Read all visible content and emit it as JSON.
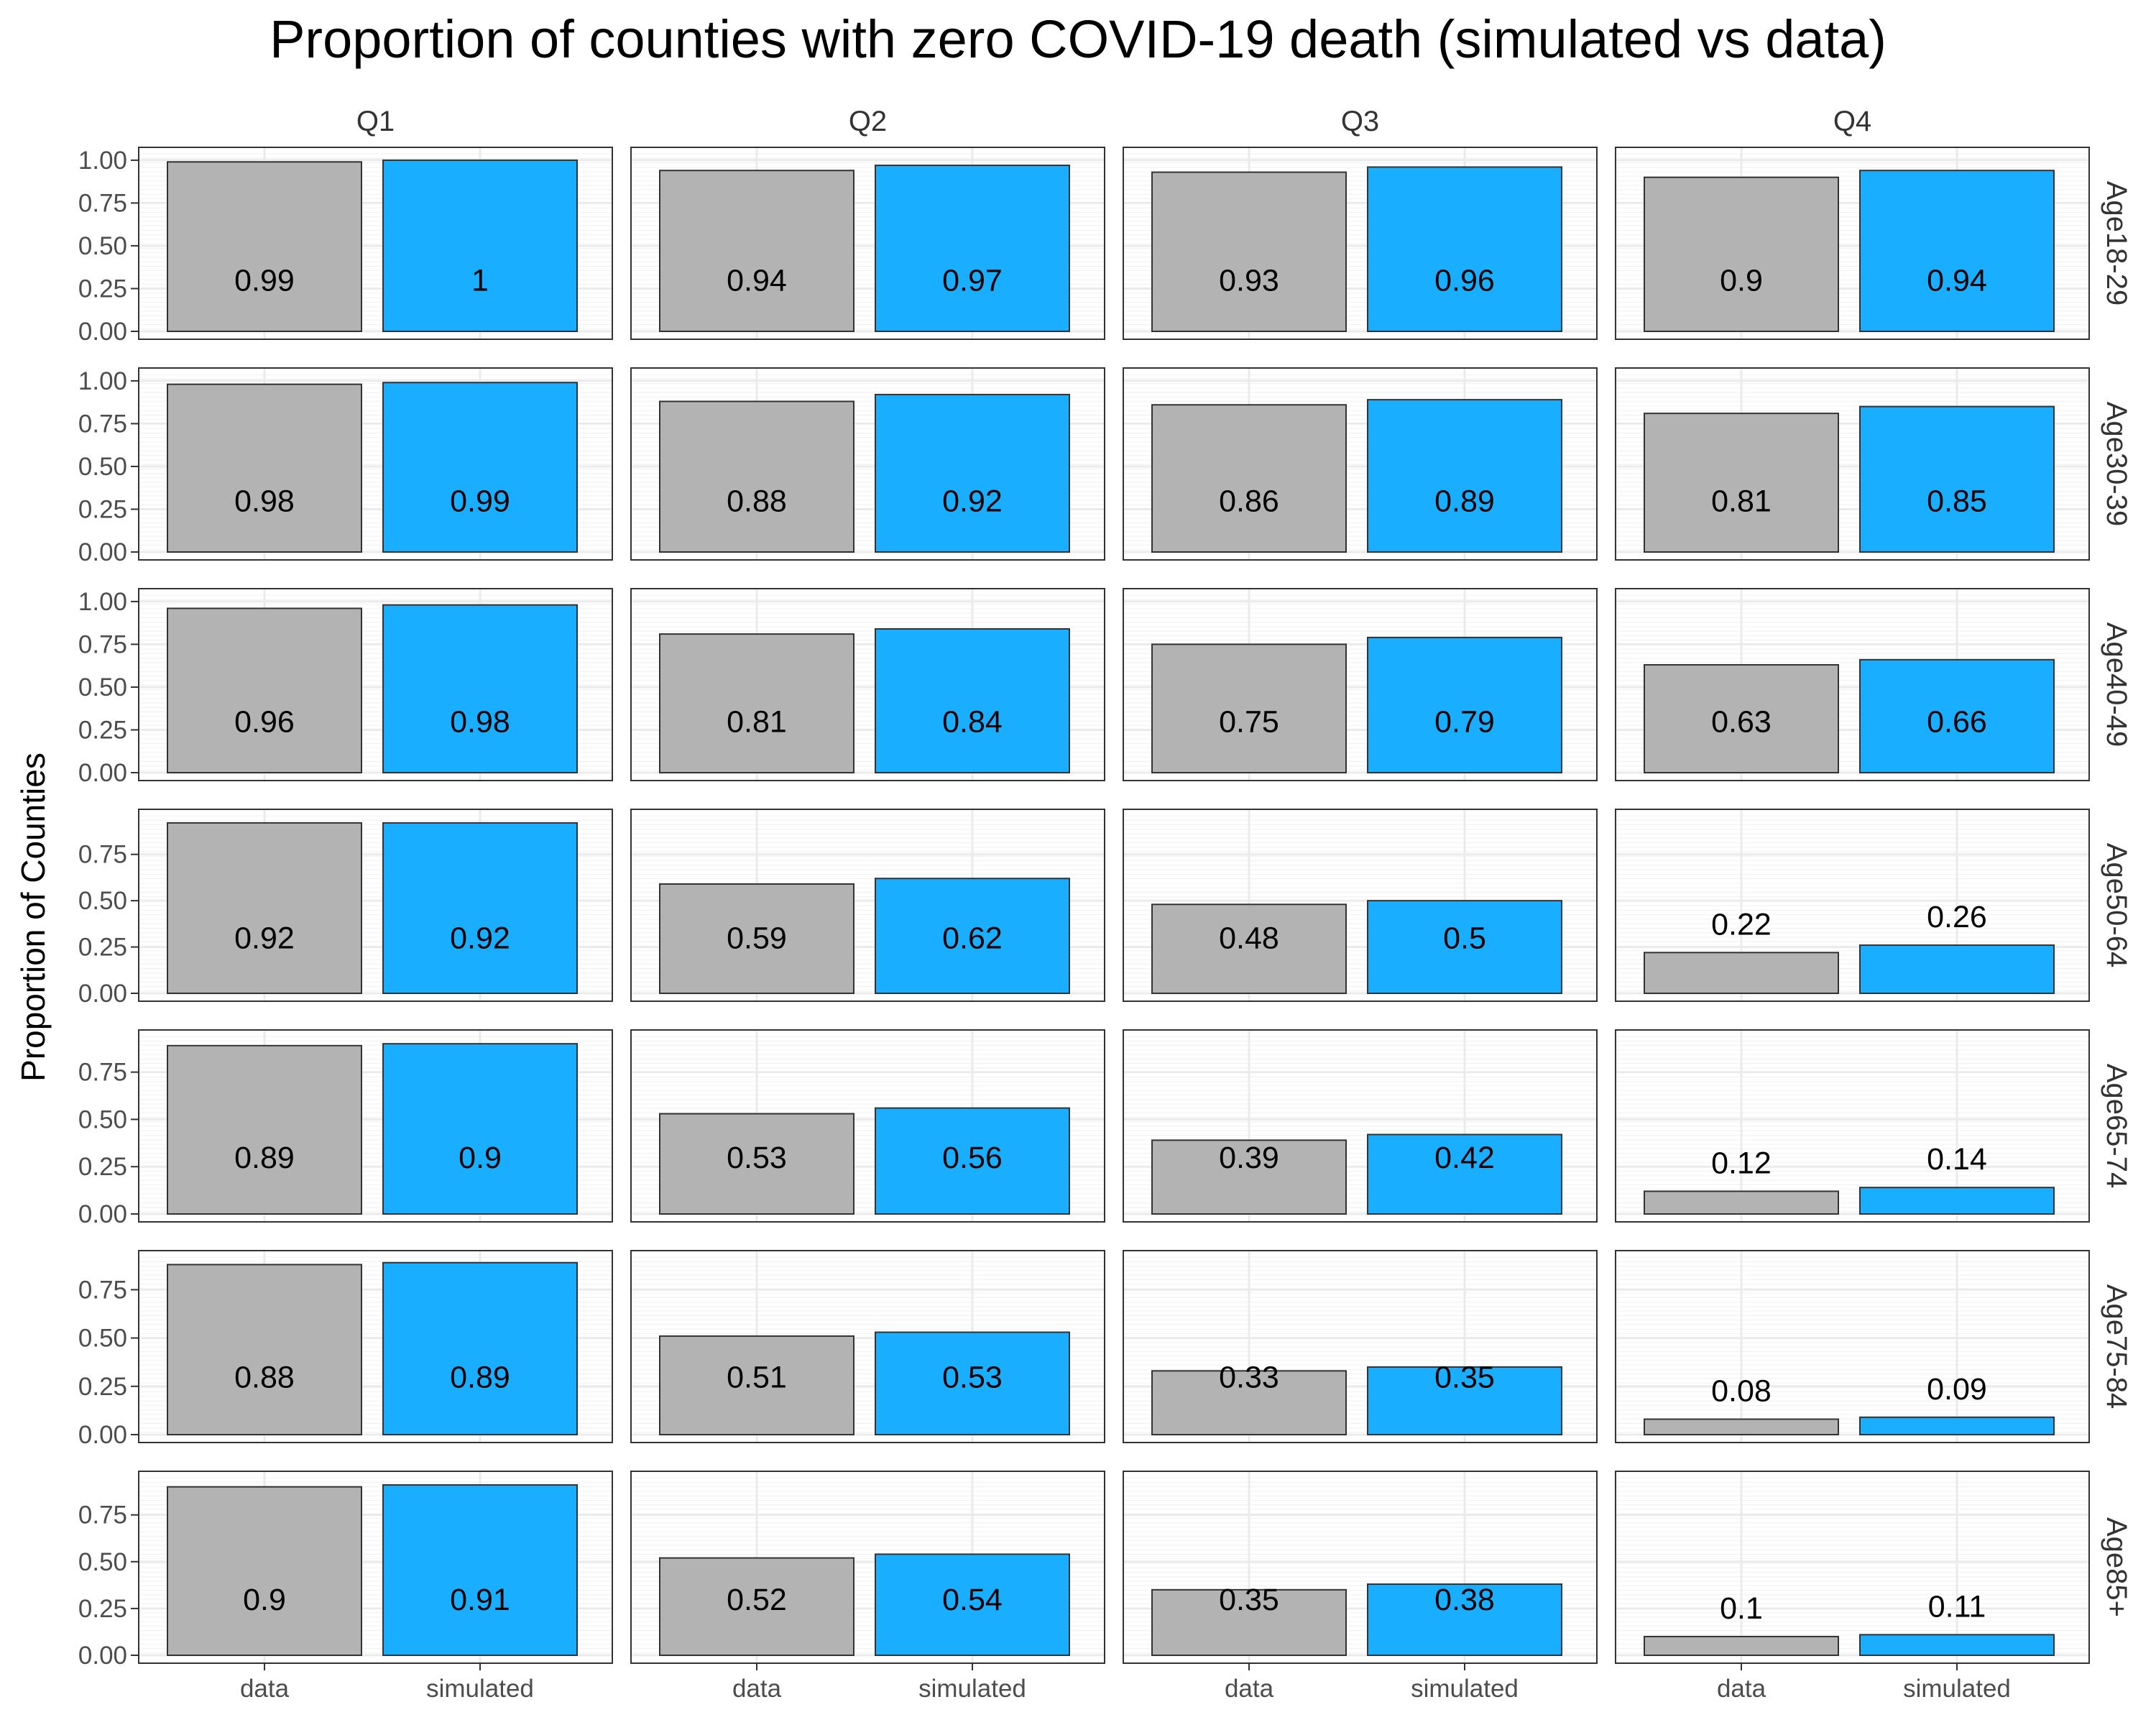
{
  "chart_data": {
    "type": "bar",
    "title": "Proportion of counties with zero COVID-19 death (simulated vs data)",
    "xlabel": "",
    "ylabel": "Proportion of Counties",
    "categories": [
      "data",
      "simulated"
    ],
    "columns": [
      "Q1",
      "Q2",
      "Q3",
      "Q4"
    ],
    "rows": [
      "Age18-29",
      "Age30-39",
      "Age40-49",
      "Age50-64",
      "Age65-74",
      "Age75-84",
      "Age85+"
    ],
    "colors": {
      "data": "#b3b3b3",
      "simulated": "#19aeff"
    },
    "panels": [
      {
        "row": "Age18-29",
        "col": "Q1",
        "values": [
          0.99,
          1.0
        ],
        "labels": [
          "0.99",
          "1"
        ]
      },
      {
        "row": "Age18-29",
        "col": "Q2",
        "values": [
          0.94,
          0.97
        ],
        "labels": [
          "0.94",
          "0.97"
        ]
      },
      {
        "row": "Age18-29",
        "col": "Q3",
        "values": [
          0.93,
          0.96
        ],
        "labels": [
          "0.93",
          "0.96"
        ]
      },
      {
        "row": "Age18-29",
        "col": "Q4",
        "values": [
          0.9,
          0.94
        ],
        "labels": [
          "0.9",
          "0.94"
        ]
      },
      {
        "row": "Age30-39",
        "col": "Q1",
        "values": [
          0.98,
          0.99
        ],
        "labels": [
          "0.98",
          "0.99"
        ]
      },
      {
        "row": "Age30-39",
        "col": "Q2",
        "values": [
          0.88,
          0.92
        ],
        "labels": [
          "0.88",
          "0.92"
        ]
      },
      {
        "row": "Age30-39",
        "col": "Q3",
        "values": [
          0.86,
          0.89
        ],
        "labels": [
          "0.86",
          "0.89"
        ]
      },
      {
        "row": "Age30-39",
        "col": "Q4",
        "values": [
          0.81,
          0.85
        ],
        "labels": [
          "0.81",
          "0.85"
        ]
      },
      {
        "row": "Age40-49",
        "col": "Q1",
        "values": [
          0.96,
          0.98
        ],
        "labels": [
          "0.96",
          "0.98"
        ]
      },
      {
        "row": "Age40-49",
        "col": "Q2",
        "values": [
          0.81,
          0.84
        ],
        "labels": [
          "0.81",
          "0.84"
        ]
      },
      {
        "row": "Age40-49",
        "col": "Q3",
        "values": [
          0.75,
          0.79
        ],
        "labels": [
          "0.75",
          "0.79"
        ]
      },
      {
        "row": "Age40-49",
        "col": "Q4",
        "values": [
          0.63,
          0.66
        ],
        "labels": [
          "0.63",
          "0.66"
        ]
      },
      {
        "row": "Age50-64",
        "col": "Q1",
        "values": [
          0.92,
          0.92
        ],
        "labels": [
          "0.92",
          "0.92"
        ]
      },
      {
        "row": "Age50-64",
        "col": "Q2",
        "values": [
          0.59,
          0.62
        ],
        "labels": [
          "0.59",
          "0.62"
        ]
      },
      {
        "row": "Age50-64",
        "col": "Q3",
        "values": [
          0.48,
          0.5
        ],
        "labels": [
          "0.48",
          "0.5"
        ]
      },
      {
        "row": "Age50-64",
        "col": "Q4",
        "values": [
          0.22,
          0.26
        ],
        "labels": [
          "0.22",
          "0.26"
        ]
      },
      {
        "row": "Age65-74",
        "col": "Q1",
        "values": [
          0.89,
          0.9
        ],
        "labels": [
          "0.89",
          "0.9"
        ]
      },
      {
        "row": "Age65-74",
        "col": "Q2",
        "values": [
          0.53,
          0.56
        ],
        "labels": [
          "0.53",
          "0.56"
        ]
      },
      {
        "row": "Age65-74",
        "col": "Q3",
        "values": [
          0.39,
          0.42
        ],
        "labels": [
          "0.39",
          "0.42"
        ]
      },
      {
        "row": "Age65-74",
        "col": "Q4",
        "values": [
          0.12,
          0.14
        ],
        "labels": [
          "0.12",
          "0.14"
        ]
      },
      {
        "row": "Age75-84",
        "col": "Q1",
        "values": [
          0.88,
          0.89
        ],
        "labels": [
          "0.88",
          "0.89"
        ]
      },
      {
        "row": "Age75-84",
        "col": "Q2",
        "values": [
          0.51,
          0.53
        ],
        "labels": [
          "0.51",
          "0.53"
        ]
      },
      {
        "row": "Age75-84",
        "col": "Q3",
        "values": [
          0.33,
          0.35
        ],
        "labels": [
          "0.33",
          "0.35"
        ]
      },
      {
        "row": "Age75-84",
        "col": "Q4",
        "values": [
          0.08,
          0.09
        ],
        "labels": [
          "0.08",
          "0.09"
        ]
      },
      {
        "row": "Age85+",
        "col": "Q1",
        "values": [
          0.9,
          0.91
        ],
        "labels": [
          "0.9",
          "0.91"
        ]
      },
      {
        "row": "Age85+",
        "col": "Q2",
        "values": [
          0.52,
          0.54
        ],
        "labels": [
          "0.52",
          "0.54"
        ]
      },
      {
        "row": "Age85+",
        "col": "Q3",
        "values": [
          0.35,
          0.38
        ],
        "labels": [
          "0.35",
          "0.38"
        ]
      },
      {
        "row": "Age85+",
        "col": "Q4",
        "values": [
          0.1,
          0.11
        ],
        "labels": [
          "0.1",
          "0.11"
        ]
      }
    ],
    "row_axes": [
      {
        "row": "Age18-29",
        "ylim": [
          0,
          1.05
        ],
        "ticks": [
          "0.00",
          "0.25",
          "0.50",
          "0.75",
          "1.00"
        ]
      },
      {
        "row": "Age30-39",
        "ylim": [
          0,
          1.05
        ],
        "ticks": [
          "0.00",
          "0.25",
          "0.50",
          "0.75",
          "1.00"
        ]
      },
      {
        "row": "Age40-49",
        "ylim": [
          0,
          1.05
        ],
        "ticks": [
          "0.00",
          "0.25",
          "0.50",
          "0.75",
          "1.00"
        ]
      },
      {
        "row": "Age50-64",
        "ylim": [
          0,
          0.97
        ],
        "ticks": [
          "0.00",
          "0.25",
          "0.50",
          "0.75"
        ]
      },
      {
        "row": "Age65-74",
        "ylim": [
          0,
          0.95
        ],
        "ticks": [
          "0.00",
          "0.25",
          "0.50",
          "0.75"
        ]
      },
      {
        "row": "Age75-84",
        "ylim": [
          0,
          0.93
        ],
        "ticks": [
          "0.00",
          "0.25",
          "0.50",
          "0.75"
        ]
      },
      {
        "row": "Age85+",
        "ylim": [
          0,
          0.96
        ],
        "ticks": [
          "0.00",
          "0.25",
          "0.50",
          "0.75"
        ]
      }
    ],
    "grid": true,
    "legend": "none"
  }
}
